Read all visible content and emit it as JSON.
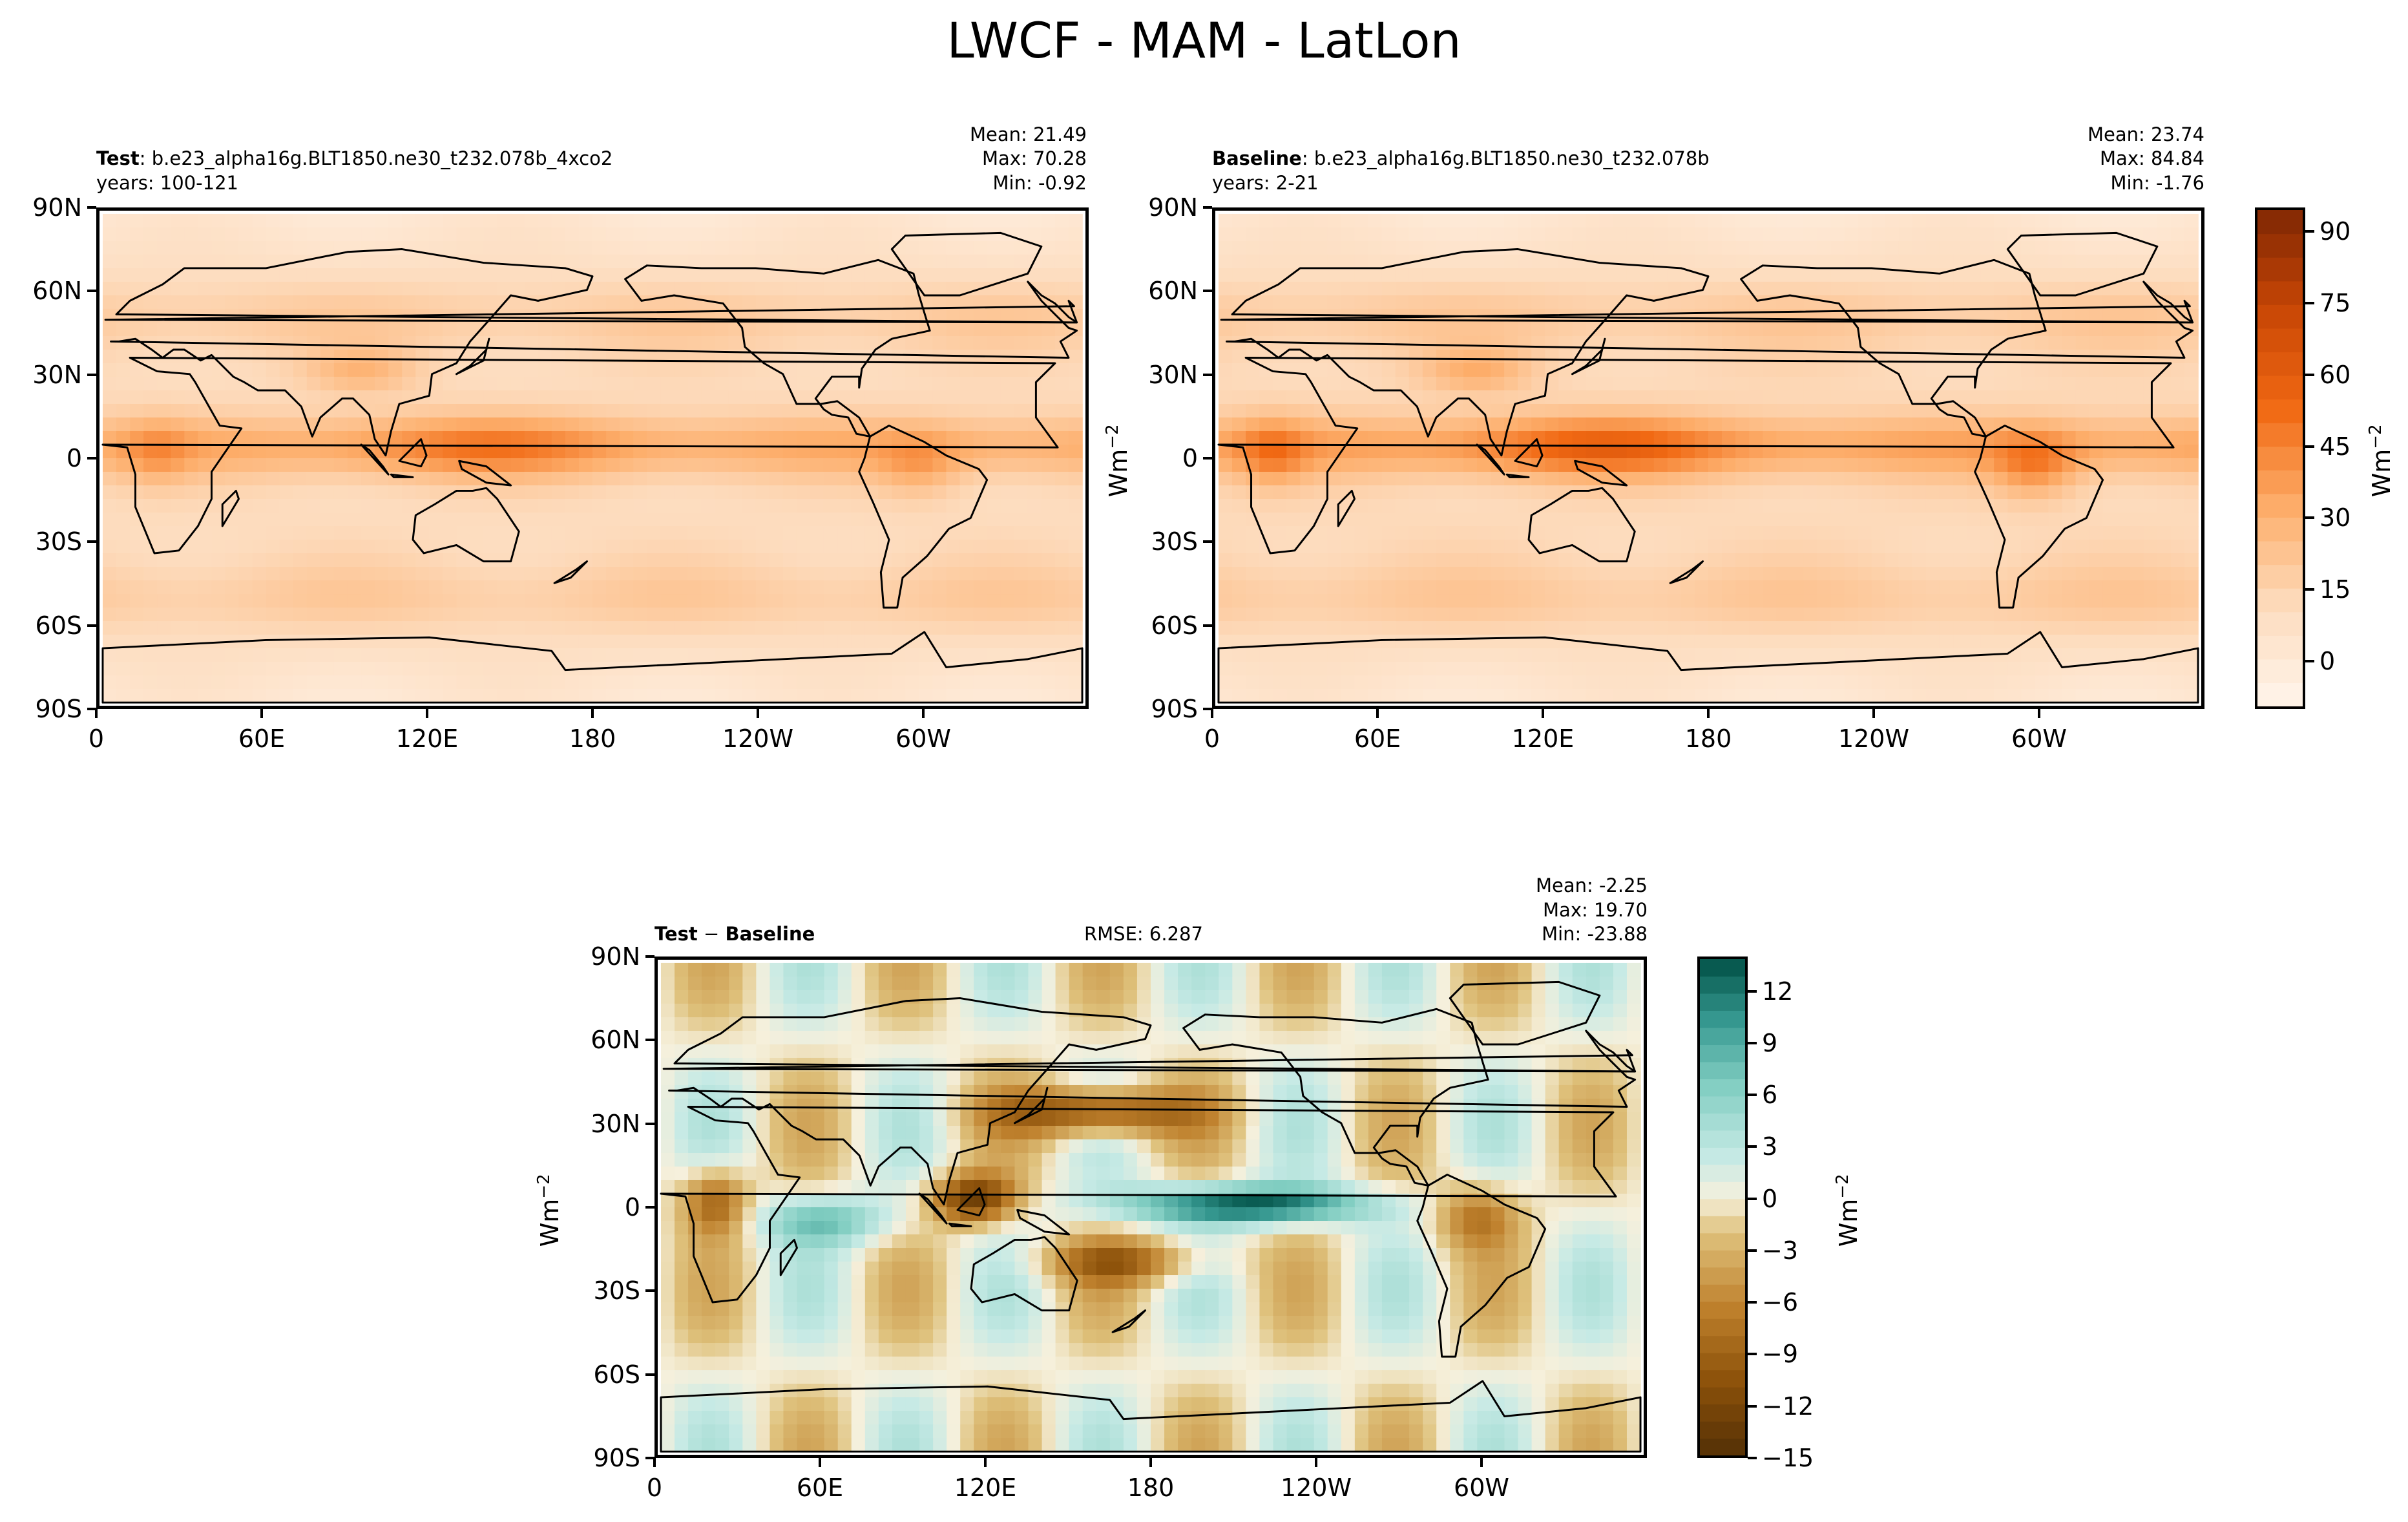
{
  "figure_title": "LWCF - MAM - LatLon",
  "chart_data": [
    {
      "type": "heatmap",
      "panel": "test",
      "label_prefix": "Test",
      "case_name": "b.e23_alpha16g.BLT1850.ne30_t232.078b_4xco2",
      "years_label": "years: 100-121",
      "stats": {
        "mean": "Mean: 21.49",
        "max": "Max: 70.28",
        "min": "Min: -0.92"
      },
      "x_ticks": [
        "0",
        "60E",
        "120E",
        "180",
        "120W",
        "60W"
      ],
      "y_ticks": [
        "90N",
        "60N",
        "30N",
        "0",
        "30S",
        "60S",
        "90S"
      ],
      "xlim": [
        0,
        360
      ],
      "ylim": [
        -90,
        90
      ],
      "colormap": "Oranges"
    },
    {
      "type": "heatmap",
      "panel": "baseline",
      "label_prefix": "Baseline",
      "case_name": "b.e23_alpha16g.BLT1850.ne30_t232.078b",
      "years_label": "years: 2-21",
      "stats": {
        "mean": "Mean: 23.74",
        "max": "Max: 84.84",
        "min": "Min: -1.76"
      },
      "x_ticks": [
        "0",
        "60E",
        "120E",
        "180",
        "120W",
        "60W"
      ],
      "y_ticks": [
        "90N",
        "60N",
        "30N",
        "0",
        "30S",
        "60S",
        "90S"
      ],
      "xlim": [
        0,
        360
      ],
      "ylim": [
        -90,
        90
      ],
      "colormap": "Oranges",
      "colorbar": {
        "ticks": [
          "90",
          "75",
          "60",
          "45",
          "30",
          "15",
          "0"
        ],
        "tick_values": [
          90,
          75,
          60,
          45,
          30,
          15,
          0
        ],
        "range": [
          -10,
          95
        ],
        "units_base": "Wm",
        "units_exp": "−2"
      }
    },
    {
      "type": "heatmap",
      "panel": "difference",
      "title_test": "Test",
      "title_sep": " − ",
      "title_baseline": "Baseline",
      "rmse": "RMSE: 6.287",
      "stats": {
        "mean": "Mean: -2.25",
        "max": "Max: 19.70",
        "min": "Min: -23.88"
      },
      "x_ticks": [
        "0",
        "60E",
        "120E",
        "180",
        "120W",
        "60W"
      ],
      "y_ticks": [
        "90N",
        "60N",
        "30N",
        "0",
        "30S",
        "60S",
        "90S"
      ],
      "xlim": [
        0,
        360
      ],
      "ylim": [
        -90,
        90
      ],
      "colormap": "BrBG",
      "colorbar": {
        "ticks": [
          "12",
          "9",
          "6",
          "3",
          "0",
          "−3",
          "−6",
          "−9",
          "−12",
          "−15"
        ],
        "tick_values": [
          12,
          9,
          6,
          3,
          0,
          -3,
          -6,
          -9,
          -12,
          -15
        ],
        "range": [
          -15,
          14
        ],
        "units_base": "Wm",
        "units_exp": "−2"
      }
    }
  ],
  "side_units": {
    "base": "Wm",
    "exp": "−2"
  }
}
